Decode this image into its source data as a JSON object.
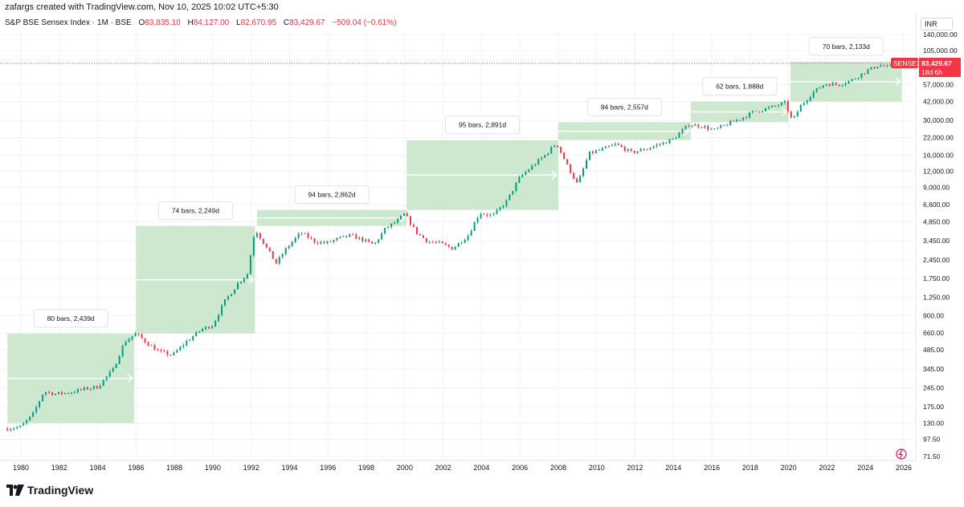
{
  "header": {
    "attribution": "zafargs created with TradingView.com, Nov 10, 2025 10:02 UTC+5:30"
  },
  "legend": {
    "symbol": "S&P BSE Sensex Index · 1M · BSE",
    "open_label": "O",
    "open": "83,835.10",
    "high_label": "H",
    "high": "84,127.00",
    "low_label": "L",
    "low": "82,670.95",
    "close_label": "C",
    "close": "83,429.67",
    "change": "−509.04 (−0.61%)"
  },
  "currency": "INR",
  "last_price": {
    "ticker": "SENSEX",
    "value": "83,429.67",
    "countdown": "18d 6h",
    "color": "#f23645"
  },
  "footer": {
    "brand": "TradingView"
  },
  "colors": {
    "up": "#089981",
    "down": "#f23645",
    "range_fill": "#c8e6c9",
    "grid": "#f0f3fa"
  },
  "chart_data": {
    "type": "line",
    "title": "S&P BSE Sensex Index · 1M · BSE",
    "y_scale": "log",
    "y_ticks": [
      "71.50",
      "97.50",
      "130.00",
      "175.00",
      "245.00",
      "345.00",
      "485.00",
      "660.00",
      "900.00",
      "1,250.00",
      "1,750.00",
      "2,450.00",
      "3,450.00",
      "4,850.00",
      "6,600.00",
      "9,000.00",
      "12,000.00",
      "16,000.00",
      "22,000.00",
      "30,000.00",
      "42,000.00",
      "57,000.00",
      "105,000.00",
      "140,000.00"
    ],
    "y_tick_values": [
      71.5,
      97.5,
      130,
      175,
      245,
      345,
      485,
      660,
      900,
      1250,
      1750,
      2450,
      3450,
      4850,
      6600,
      9000,
      12000,
      16000,
      22000,
      30000,
      42000,
      57000,
      105000,
      140000
    ],
    "x_ticks": [
      "1980",
      "1982",
      "1984",
      "1986",
      "1988",
      "1990",
      "1992",
      "1994",
      "1996",
      "1998",
      "2000",
      "2002",
      "2004",
      "2006",
      "2008",
      "2010",
      "2012",
      "2014",
      "2016",
      "2018",
      "2020",
      "2022",
      "2024",
      "2026"
    ],
    "x_tick_values": [
      1980,
      1982,
      1984,
      1986,
      1988,
      1990,
      1992,
      1994,
      1996,
      1998,
      2000,
      2002,
      2004,
      2006,
      2008,
      2010,
      2012,
      2014,
      2016,
      2018,
      2020,
      2022,
      2024,
      2026
    ],
    "series": [
      {
        "x": [
          1979.3,
          1980.0,
          1980.6,
          1981.2,
          1981.8,
          1982.5,
          1983.3,
          1984.0,
          1984.8,
          1985.4,
          1986.0,
          1986.5,
          1987.2,
          1987.9,
          1988.6,
          1989.4,
          1990.0,
          1990.6,
          1991.3,
          1991.8,
          1992.2,
          1992.7,
          1993.3,
          1993.9,
          1994.6,
          1995.3,
          1995.9,
          1996.6,
          1997.2,
          1997.8,
          1998.4,
          1999.0,
          1999.6,
          2000.0,
          2000.6,
          2001.2,
          2001.8,
          2002.5,
          2003.3,
          2003.9,
          2004.6,
          2005.3,
          2006.0,
          2006.6,
          2007.3,
          2007.9,
          2008.5,
          2009.0,
          2009.6,
          2010.4,
          2011.0,
          2011.8,
          2012.6,
          2013.4,
          2014.0,
          2014.8,
          2015.5,
          2016.1,
          2016.8,
          2017.5,
          2018.2,
          2019.0,
          2019.8,
          2020.2,
          2020.6,
          2021.3,
          2021.9,
          2022.6,
          2023.3,
          2024.0,
          2024.7,
          2025.2,
          2025.85
        ],
        "y": [
          118,
          122,
          150,
          230,
          220,
          225,
          240,
          250,
          340,
          560,
          650,
          560,
          470,
          440,
          560,
          700,
          760,
          1150,
          1600,
          1900,
          4300,
          3200,
          2300,
          3100,
          4000,
          3400,
          3300,
          3600,
          3800,
          3500,
          3200,
          4300,
          4900,
          5600,
          4000,
          3400,
          3300,
          3000,
          3800,
          5700,
          5400,
          7000,
          10800,
          13000,
          16000,
          20000,
          13000,
          9500,
          16500,
          18000,
          19500,
          16800,
          18000,
          19800,
          21500,
          27800,
          27000,
          25000,
          28000,
          31000,
          35000,
          37500,
          41000,
          29500,
          38500,
          50000,
          58000,
          57000,
          62000,
          72000,
          81000,
          77500,
          83429.67
        ]
      }
    ],
    "measure_ranges": [
      {
        "label": "80 bars, 2,439d",
        "x_start": 1979.3,
        "x_end": 1985.9,
        "y_start": 130,
        "y_end": 650
      },
      {
        "label": "74 bars, 2,249d",
        "x_start": 1986.0,
        "x_end": 1992.2,
        "y_start": 650,
        "y_end": 4500
      },
      {
        "label": "94 bars, 2,862d",
        "x_start": 1992.3,
        "x_end": 2000.1,
        "y_start": 4500,
        "y_end": 6000
      },
      {
        "label": "95 bars, 2,891d",
        "x_start": 2000.1,
        "x_end": 2008.0,
        "y_start": 6000,
        "y_end": 21000
      },
      {
        "label": "84 bars, 2,557d",
        "x_start": 2008.0,
        "x_end": 2014.9,
        "y_start": 21000,
        "y_end": 29000
      },
      {
        "label": "62 bars, 1,888d",
        "x_start": 2014.9,
        "x_end": 2020.0,
        "y_start": 29000,
        "y_end": 42000
      },
      {
        "label": "70 bars, 2,133d",
        "x_start": 2020.1,
        "x_end": 2025.9,
        "y_start": 42000,
        "y_end": 86000
      }
    ],
    "last_value": 83429.67,
    "grid": true,
    "legend_position": "top-left"
  }
}
